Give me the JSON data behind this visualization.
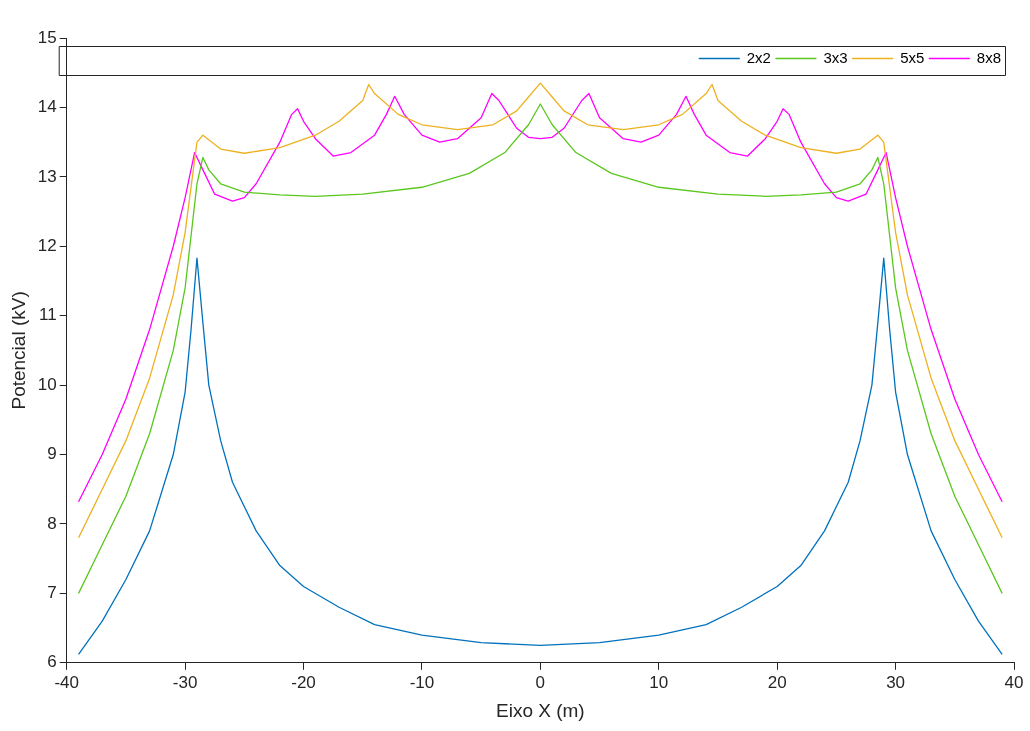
{
  "chart_data": {
    "type": "line",
    "xlabel": "Eixo X (m)",
    "ylabel": "Potencial (kV)",
    "xlim": [
      -40,
      40
    ],
    "xticks": [
      -40,
      -30,
      -20,
      -10,
      0,
      10,
      20,
      30,
      40
    ],
    "ylim": [
      6,
      15
    ],
    "yticks": [
      6,
      7,
      8,
      9,
      10,
      11,
      12,
      13,
      14,
      15
    ],
    "grid": false,
    "legend": "top right",
    "marker": "none",
    "line_style": "solid",
    "series": [
      {
        "name": "2x2",
        "color": "#0072bd",
        "x": [
          -39,
          -37,
          -35,
          -33,
          -31,
          -30,
          -29.5,
          -29,
          -28.5,
          -28,
          -27,
          -26,
          -24,
          -22,
          -20,
          -17,
          -14,
          -10,
          -5,
          0,
          5,
          10,
          14,
          17,
          20,
          22,
          24,
          26,
          27,
          28,
          28.5,
          29,
          29.5,
          30,
          31,
          33,
          35,
          37,
          39
        ],
        "values": [
          6.12,
          6.6,
          7.2,
          7.9,
          9.0,
          9.9,
          10.8,
          11.83,
          10.9,
          10.0,
          9.2,
          8.6,
          7.9,
          7.4,
          7.1,
          6.8,
          6.55,
          6.4,
          6.29,
          6.25,
          6.29,
          6.4,
          6.55,
          6.8,
          7.1,
          7.4,
          7.9,
          8.6,
          9.2,
          10.0,
          10.9,
          11.83,
          10.8,
          9.9,
          9.0,
          7.9,
          7.2,
          6.6,
          6.12
        ]
      },
      {
        "name": "3x3",
        "color": "#5ac71e",
        "x": [
          -39,
          -37,
          -35,
          -33,
          -31,
          -30,
          -29,
          -28.5,
          -28,
          -27,
          -25,
          -22,
          -19,
          -15,
          -10,
          -6,
          -3,
          -1,
          0,
          1,
          3,
          6,
          10,
          15,
          19,
          22,
          25,
          27,
          28,
          28.5,
          29,
          30,
          31,
          33,
          35,
          37,
          39
        ],
        "values": [
          7.0,
          7.7,
          8.4,
          9.3,
          10.5,
          11.4,
          12.9,
          13.28,
          13.1,
          12.9,
          12.78,
          12.74,
          12.72,
          12.75,
          12.85,
          13.05,
          13.35,
          13.75,
          14.05,
          13.75,
          13.35,
          13.05,
          12.85,
          12.75,
          12.72,
          12.74,
          12.78,
          12.9,
          13.1,
          13.28,
          12.9,
          11.4,
          10.5,
          9.3,
          8.4,
          7.7,
          7.0
        ]
      },
      {
        "name": "5x5",
        "color": "#edb120",
        "x": [
          -39,
          -37,
          -35,
          -33,
          -31,
          -30,
          -29,
          -28.5,
          -27,
          -25,
          -22,
          -19,
          -17,
          -15,
          -14.5,
          -14,
          -12,
          -10,
          -7,
          -4,
          -2,
          -1,
          0,
          1,
          2,
          4,
          7,
          10,
          12,
          14,
          14.5,
          15,
          17,
          19,
          22,
          25,
          27,
          28.5,
          29,
          30,
          31,
          33,
          35,
          37,
          39
        ],
        "values": [
          7.8,
          8.5,
          9.2,
          10.1,
          11.3,
          12.2,
          13.5,
          13.6,
          13.4,
          13.34,
          13.42,
          13.6,
          13.8,
          14.1,
          14.33,
          14.2,
          13.9,
          13.75,
          13.68,
          13.75,
          13.95,
          14.15,
          14.35,
          14.15,
          13.95,
          13.75,
          13.68,
          13.75,
          13.9,
          14.2,
          14.33,
          14.1,
          13.8,
          13.6,
          13.42,
          13.34,
          13.4,
          13.6,
          13.5,
          12.2,
          11.3,
          10.1,
          9.2,
          8.5,
          7.8
        ]
      },
      {
        "name": "8x8",
        "color": "#ff00ff",
        "x": [
          -39,
          -37,
          -35,
          -33,
          -31,
          -30,
          -29.2,
          -28.5,
          -27.5,
          -26,
          -25,
          -24,
          -22,
          -21,
          -20.5,
          -20,
          -19,
          -17.5,
          -16,
          -14,
          -13,
          -12.3,
          -11.5,
          -10,
          -8.5,
          -7,
          -5,
          -4.1,
          -3.5,
          -2,
          -1,
          0,
          1,
          2,
          3.5,
          4.1,
          5,
          7,
          8.5,
          10,
          11.5,
          12.3,
          13,
          14,
          16,
          17.5,
          19,
          20,
          20.5,
          21,
          22,
          24,
          25,
          26,
          27.5,
          28.5,
          29.2,
          30,
          31,
          33,
          35,
          37,
          39
        ],
        "values": [
          8.32,
          9.0,
          9.8,
          10.8,
          12.0,
          12.7,
          13.35,
          13.1,
          12.75,
          12.65,
          12.7,
          12.9,
          13.5,
          13.9,
          13.98,
          13.8,
          13.55,
          13.3,
          13.35,
          13.6,
          13.9,
          14.16,
          13.9,
          13.6,
          13.5,
          13.55,
          13.85,
          14.2,
          14.1,
          13.7,
          13.57,
          13.55,
          13.57,
          13.7,
          14.1,
          14.2,
          13.85,
          13.55,
          13.5,
          13.6,
          13.9,
          14.16,
          13.9,
          13.6,
          13.35,
          13.3,
          13.55,
          13.8,
          13.98,
          13.9,
          13.5,
          12.9,
          12.7,
          12.65,
          12.75,
          13.1,
          13.35,
          12.7,
          12.0,
          10.8,
          9.8,
          9.0,
          8.32
        ]
      }
    ]
  }
}
